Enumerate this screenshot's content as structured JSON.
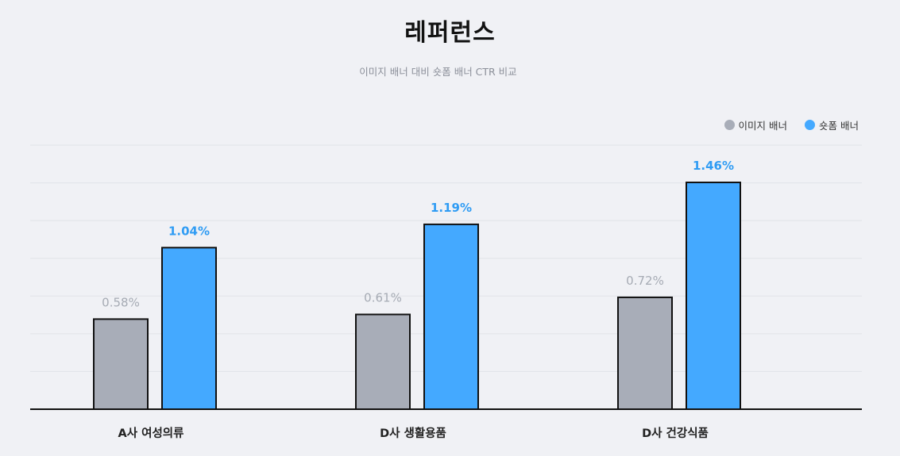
{
  "header": {
    "title": "레퍼런스",
    "subtitle": "이미지 배너 대비 숏폼 배너 CTR 비교"
  },
  "colors": {
    "image_banner": "#a8adb8",
    "shortform_banner": "#44a9ff",
    "image_label": "#a6abb4",
    "shortform_label": "#2f9cf4"
  },
  "chart_data": {
    "type": "bar",
    "title": "레퍼런스",
    "subtitle": "이미지 배너 대비 숏폼 배너 CTR 비교",
    "categories": [
      "A사 여성의류",
      "D사 생활용품",
      "D사 건강식품"
    ],
    "series": [
      {
        "name": "이미지 배너",
        "values": [
          0.58,
          0.61,
          0.72
        ],
        "labels": [
          "0.58%",
          "0.61%",
          "0.72%"
        ]
      },
      {
        "name": "숏폼 배너",
        "values": [
          1.04,
          1.19,
          1.46
        ],
        "labels": [
          "1.04%",
          "1.19%",
          "1.46%"
        ]
      }
    ],
    "ylim": [
      0,
      1.7
    ],
    "grid": true,
    "legend_position": "top-right",
    "xlabel": "",
    "ylabel": ""
  }
}
